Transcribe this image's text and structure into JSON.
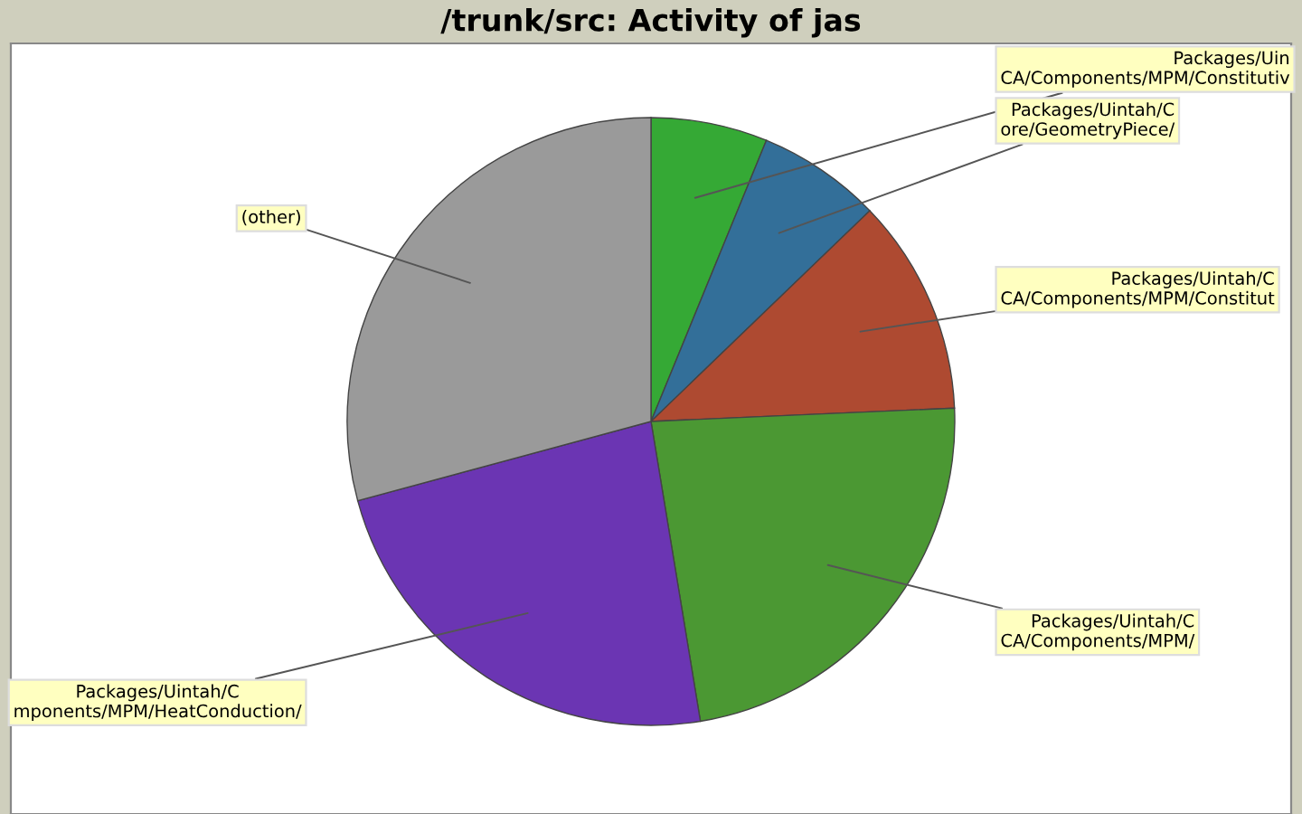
{
  "chart_data": {
    "type": "pie",
    "title": "/trunk/src: Activity of jas",
    "categories": [
      "Packages/Uin\nCA/Components/MPM/Constitutiv",
      "Packages/Uintah/C\nore/GeometryPiece/",
      "Packages/Uintah/C\nCA/Components/MPM/Constitut",
      "Packages/Uintah/C\nCA/Components/MPM/",
      "Packages/Uintah/C\nmponents/MPM/HeatConduction/",
      "(other)"
    ],
    "values": [
      6.2,
      6.6,
      11.5,
      23.1,
      23.4,
      29.2
    ],
    "colors": [
      "#35a935",
      "#336f99",
      "#ae4a31",
      "#4b9833",
      "#6b35b3",
      "#9a9a9a"
    ]
  }
}
